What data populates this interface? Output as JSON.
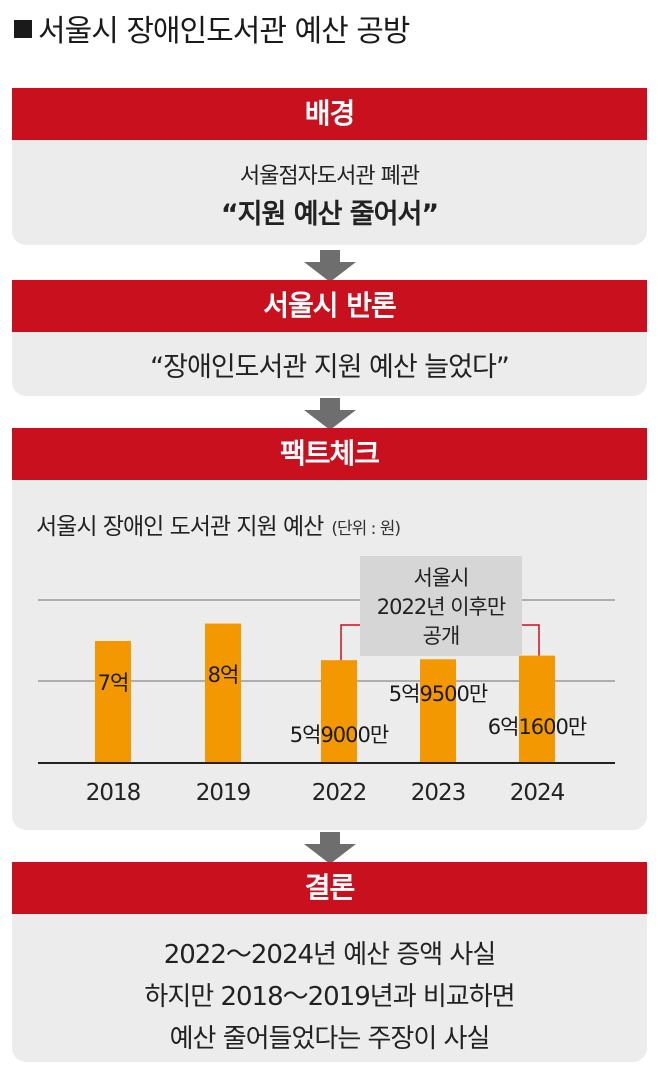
{
  "title": "서울시 장애인도서관 예산 공방",
  "sections": {
    "background": {
      "header": "배경",
      "line1": "서울점자도서관 폐관",
      "line2": "“지원 예산 줄어서”"
    },
    "rebuttal": {
      "header": "서울시 반론",
      "line1": "“장애인도서관 지원 예산 늘었다”"
    },
    "factcheck": {
      "header": "팩트체크",
      "chart_title": "서울시 장애인 도서관 지원 예산",
      "chart_unit": "(단위 : 원)",
      "note_lines": [
        "서울시",
        "2022년 이후만",
        "공개"
      ]
    },
    "conclusion": {
      "header": "결론",
      "lines": [
        "2022～2024년 예산 증액 사실",
        "하지만 2018～2019년과 비교하면",
        "예산 줄어들었다는 주장이 사실"
      ]
    }
  },
  "colors": {
    "accent_red": "#c9101f",
    "bar": "#f39800",
    "panel": "#ececec",
    "arrow": "#6e6e6e"
  },
  "chart_data": {
    "type": "bar",
    "title": "서울시 장애인 도서관 지원 예산",
    "unit": "(단위 : 원)",
    "categories": [
      "2018",
      "2019",
      "2022",
      "2023",
      "2024"
    ],
    "values": [
      700000000,
      800000000,
      590000000,
      595000000,
      616000000
    ],
    "value_labels": [
      "7억",
      "8억",
      "5억9000만",
      "5억9500만",
      "6억1600만"
    ],
    "ylim": [
      0,
      1400000000
    ],
    "grid": true,
    "annotation": "서울시 2022년 이후만 공개"
  }
}
